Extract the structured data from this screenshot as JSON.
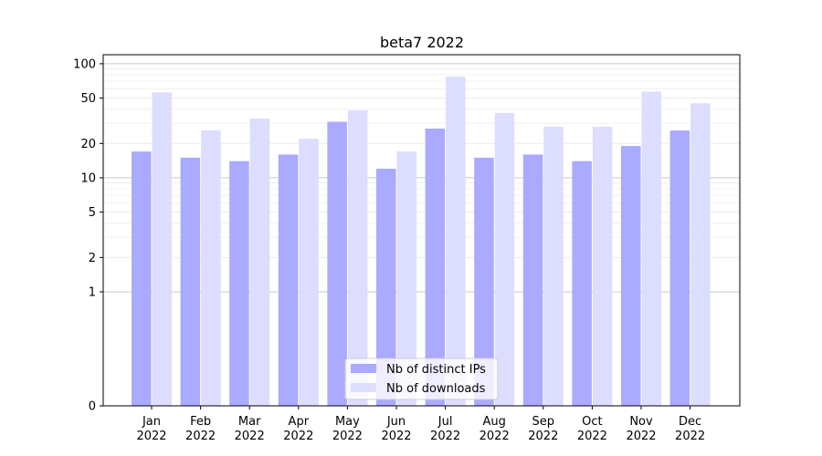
{
  "chart_data": {
    "type": "bar",
    "title": "beta7 2022",
    "xlabel": "",
    "ylabel": "",
    "y_scale": "symlog",
    "ylim": [
      0,
      120
    ],
    "y_ticks": [
      0,
      1,
      2,
      5,
      10,
      20,
      50,
      100
    ],
    "grid": "horizontal",
    "legend_position": "bottom-center",
    "categories": [
      {
        "month": "Jan",
        "year": "2022"
      },
      {
        "month": "Feb",
        "year": "2022"
      },
      {
        "month": "Mar",
        "year": "2022"
      },
      {
        "month": "Apr",
        "year": "2022"
      },
      {
        "month": "May",
        "year": "2022"
      },
      {
        "month": "Jun",
        "year": "2022"
      },
      {
        "month": "Jul",
        "year": "2022"
      },
      {
        "month": "Aug",
        "year": "2022"
      },
      {
        "month": "Sep",
        "year": "2022"
      },
      {
        "month": "Oct",
        "year": "2022"
      },
      {
        "month": "Nov",
        "year": "2022"
      },
      {
        "month": "Dec",
        "year": "2022"
      }
    ],
    "series": [
      {
        "name": "Nb of distinct IPs",
        "color": "#aaaaff",
        "values": [
          17,
          15,
          14,
          16,
          31,
          12,
          27,
          15,
          16,
          14,
          19,
          26
        ]
      },
      {
        "name": "Nb of downloads",
        "color": "#ddddff",
        "values": [
          56,
          26,
          33,
          22,
          39,
          17,
          77,
          37,
          28,
          28,
          57,
          45
        ]
      }
    ]
  }
}
